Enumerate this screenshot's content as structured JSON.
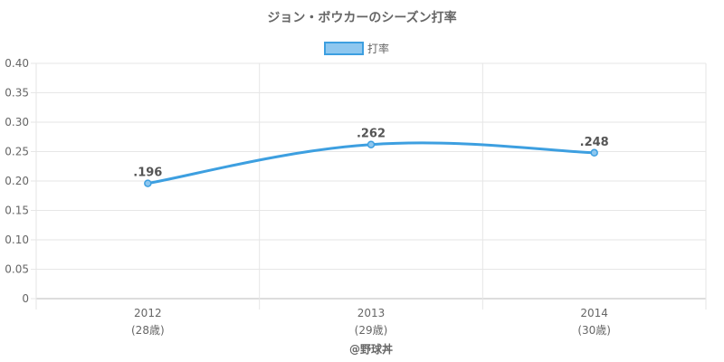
{
  "chart_data": {
    "type": "line",
    "title": "ジョン・ボウカーのシーズン打率",
    "categories": [
      "2012",
      "2013",
      "2014"
    ],
    "category_sublabels": [
      "(28歳)",
      "(29歳)",
      "(30歳)"
    ],
    "series": [
      {
        "name": "打率",
        "values": [
          0.196,
          0.262,
          0.248
        ],
        "data_labels": [
          ".196",
          ".262",
          ".248"
        ],
        "color": "#3d9fe0",
        "fill_color": "#8ec7ef"
      }
    ],
    "ylim": [
      0,
      0.4
    ],
    "y_ticks": [
      "0",
      "0.05",
      "0.10",
      "0.15",
      "0.20",
      "0.25",
      "0.30",
      "0.35",
      "0.40"
    ],
    "grid": true,
    "legend_position": "top-center",
    "credit": "@野球丼"
  }
}
